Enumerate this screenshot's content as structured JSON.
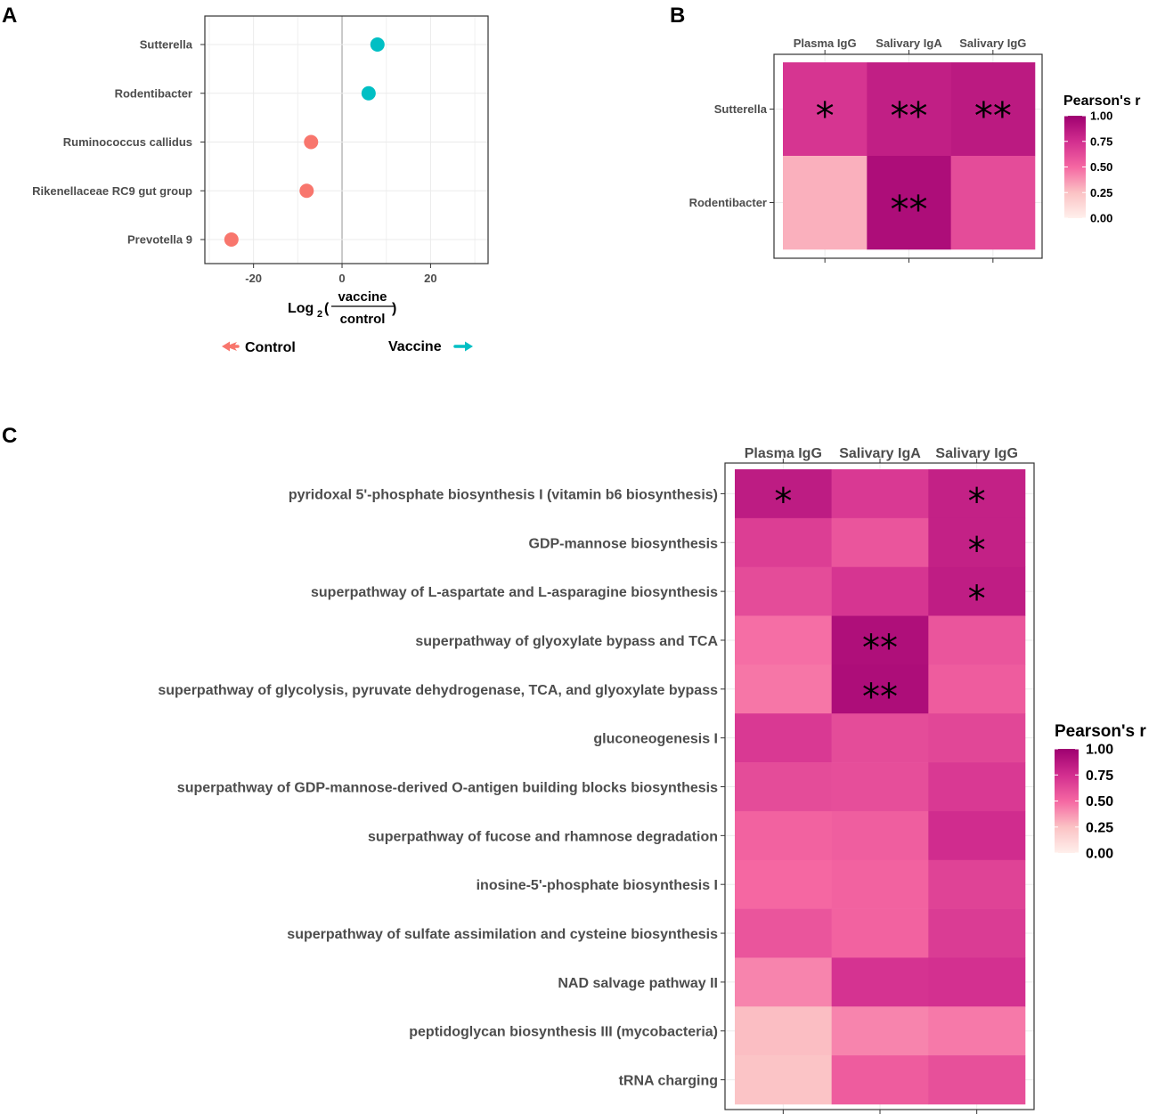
{
  "panels": {
    "a": "A",
    "b": "B",
    "c": "C"
  },
  "colors": {
    "control": "#F8766D",
    "vaccine": "#00BFC4",
    "scale_low": "#FFF0EC",
    "scale_mid": "#F567A2",
    "scale_high": "#9E0070"
  },
  "chart_data": [
    {
      "type": "scatter",
      "id": "A",
      "categories": [
        "Sutterella",
        "Rodentibacter",
        "Ruminococcus callidus",
        "Rikenellaceae RC9 gut group",
        "Prevotella 9"
      ],
      "values": [
        8,
        6,
        -7,
        -8,
        -25
      ],
      "groups": [
        "Vaccine",
        "Vaccine",
        "Control",
        "Control",
        "Control"
      ],
      "xlim": [
        -31,
        33
      ],
      "xticks": [
        -20,
        0,
        20
      ],
      "xtick_labels": [
        "-20",
        "0",
        "20"
      ],
      "xlabel": {
        "prefix": "Log",
        "sub": "2",
        "numerator": "vaccine",
        "denominator": "control"
      },
      "legend": {
        "control": "Control",
        "vaccine": "Vaccine"
      }
    },
    {
      "type": "heatmap",
      "id": "B",
      "columns": [
        "Plasma IgG",
        "Salivary IgA",
        "Salivary IgG"
      ],
      "rows": [
        "Sutterella",
        "Rodentibacter"
      ],
      "values": [
        [
          0.72,
          0.83,
          0.86
        ],
        [
          0.3,
          0.93,
          0.62
        ]
      ],
      "significance": [
        [
          "*",
          "**",
          "**"
        ],
        [
          "",
          "**",
          ""
        ]
      ],
      "legend": {
        "title": "Pearson's r",
        "ticks": [
          "1.00",
          "0.75",
          "0.50",
          "0.25",
          "0.00"
        ],
        "range": [
          0,
          1
        ]
      }
    },
    {
      "type": "heatmap",
      "id": "C",
      "columns": [
        "Plasma IgG",
        "Salivary IgA",
        "Salivary IgG"
      ],
      "rows": [
        "pyridoxal 5'-phosphate biosynthesis I (vitamin b6 biosynthesis)",
        "GDP-mannose biosynthesis",
        "superpathway of L-aspartate and L-asparagine biosynthesis",
        "superpathway of glyoxylate bypass and TCA",
        "superpathway of glycolysis, pyruvate dehydrogenase, TCA, and glyoxylate bypass",
        "gluconeogenesis I",
        "superpathway of GDP-mannose-derived O-antigen building blocks biosynthesis",
        "superpathway of fucose and rhamnose degradation",
        "inosine-5'-phosphate biosynthesis I",
        "superpathway of sulfate assimilation and cysteine biosynthesis",
        "NAD salvage pathway II",
        "peptidoglycan biosynthesis III (mycobacteria)",
        "tRNA charging"
      ],
      "values": [
        [
          0.85,
          0.7,
          0.82
        ],
        [
          0.68,
          0.58,
          0.82
        ],
        [
          0.62,
          0.72,
          0.84
        ],
        [
          0.48,
          0.92,
          0.58
        ],
        [
          0.46,
          0.93,
          0.55
        ],
        [
          0.7,
          0.62,
          0.64
        ],
        [
          0.62,
          0.61,
          0.7
        ],
        [
          0.52,
          0.54,
          0.76
        ],
        [
          0.5,
          0.52,
          0.66
        ],
        [
          0.58,
          0.52,
          0.69
        ],
        [
          0.42,
          0.73,
          0.74
        ],
        [
          0.26,
          0.42,
          0.45
        ],
        [
          0.24,
          0.55,
          0.6
        ]
      ],
      "significance": [
        [
          "*",
          "",
          "*"
        ],
        [
          "",
          "",
          "*"
        ],
        [
          "",
          "",
          "*"
        ],
        [
          "",
          "**",
          ""
        ],
        [
          "",
          "**",
          ""
        ],
        [
          "",
          "",
          ""
        ],
        [
          "",
          "",
          ""
        ],
        [
          "",
          "",
          ""
        ],
        [
          "",
          "",
          ""
        ],
        [
          "",
          "",
          ""
        ],
        [
          "",
          "",
          ""
        ],
        [
          "",
          "",
          ""
        ],
        [
          "",
          "",
          ""
        ]
      ],
      "legend": {
        "title": "Pearson's r",
        "ticks": [
          "1.00",
          "0.75",
          "0.50",
          "0.25",
          "0.00"
        ],
        "range": [
          0,
          1
        ]
      }
    }
  ]
}
